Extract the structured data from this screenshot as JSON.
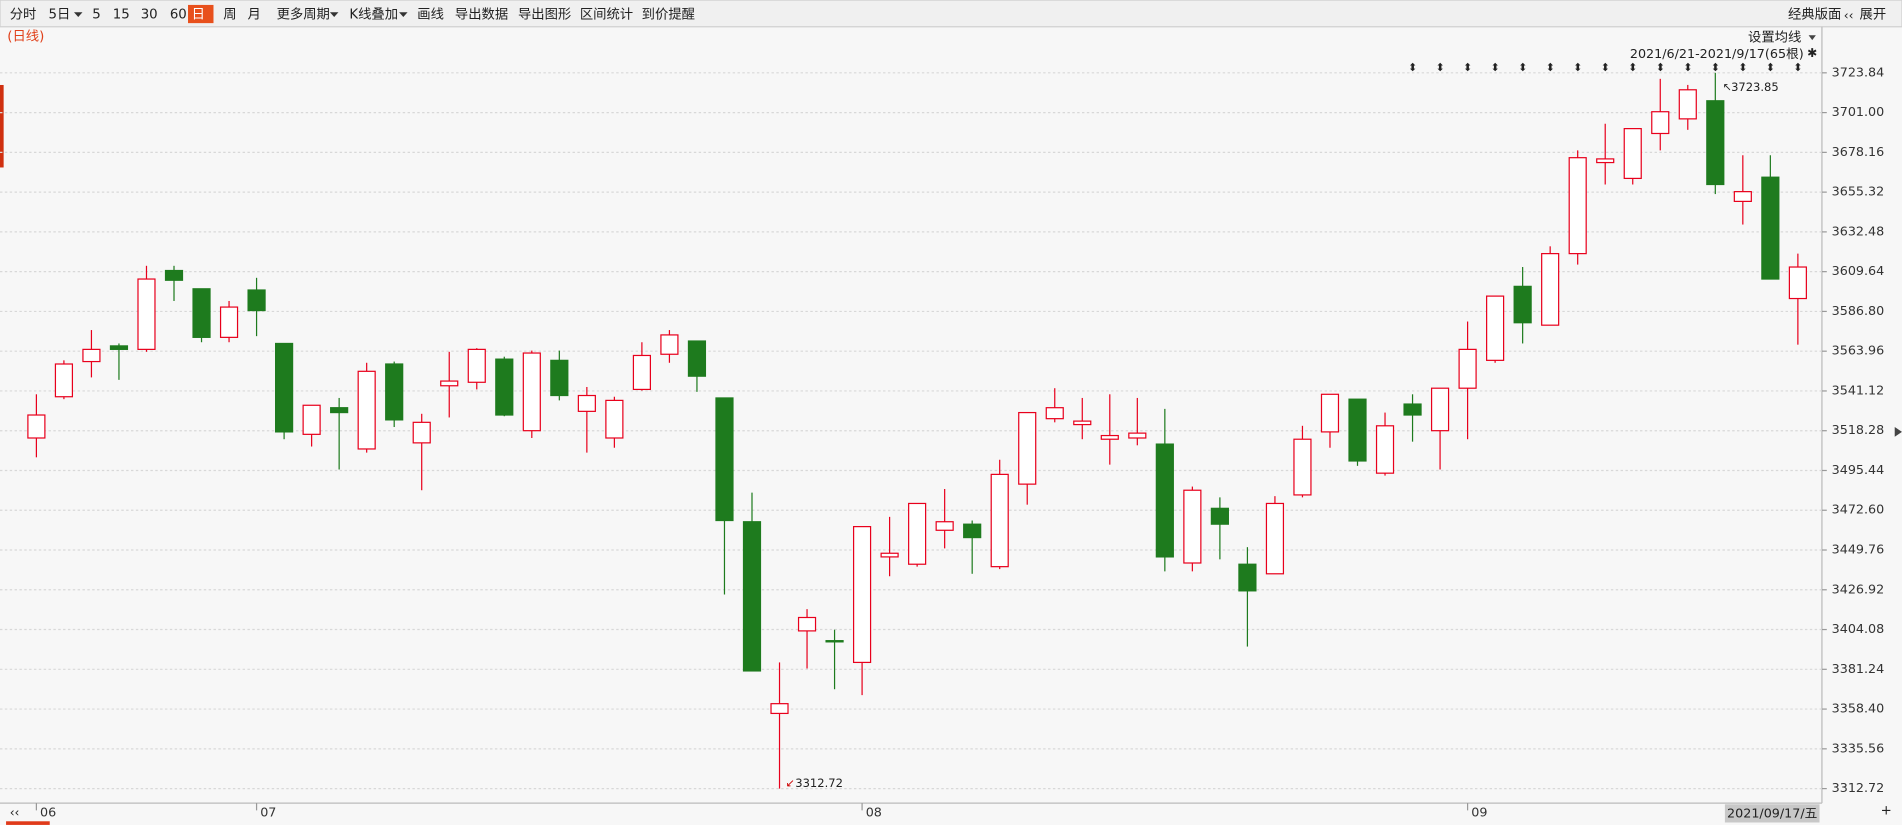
{
  "toolbar": {
    "items": [
      "分时",
      "5日",
      "5",
      "15",
      "30",
      "60",
      "日",
      "周",
      "月",
      "更多周期",
      "K线叠加",
      "画线",
      "导出数据",
      "导出图形",
      "区间统计",
      "到价提醒"
    ],
    "right_items": [
      "经典版面",
      "展开"
    ]
  },
  "chart_data": {
    "type": "candlestick",
    "title": "(日线)",
    "ma_button": "设置均线",
    "range_label": "2021/6/21-2021/9/17(65根)",
    "cursor_date": "2021/09/17/五",
    "high_marker": 3723.85,
    "low_marker": 3312.72,
    "up_color": "#e8001c",
    "down_color": "#1e7b1e",
    "grid": true,
    "categories": [
      "06",
      null,
      null,
      null,
      null,
      null,
      null,
      null,
      "07",
      null,
      null,
      null,
      null,
      null,
      null,
      null,
      null,
      null,
      null,
      null,
      null,
      null,
      null,
      null,
      null,
      null,
      null,
      null,
      null,
      null,
      "08",
      null,
      null,
      null,
      null,
      null,
      null,
      null,
      null,
      null,
      null,
      null,
      null,
      null,
      null,
      null,
      null,
      null,
      null,
      null,
      null,
      null,
      "09",
      null,
      null,
      null,
      null,
      null,
      null,
      null,
      null,
      null,
      null,
      null,
      null
    ],
    "series": {
      "open": [
        3514.1,
        3537.8,
        3558.0,
        3567.0,
        3565.0,
        3610.3,
        3599.8,
        3571.9,
        3599.1,
        3568.4,
        3516.2,
        3531.5,
        3507.8,
        3556.6,
        3511.3,
        3544.1,
        3546.1,
        3559.4,
        3518.3,
        3558.7,
        3529.4,
        3514.1,
        3542.0,
        3562.2,
        3569.8,
        3537.1,
        3466.0,
        3355.9,
        3403.3,
        3397.7,
        3385.2,
        3445.8,
        3441.6,
        3461.1,
        3464.6,
        3440.2,
        3487.6,
        3525.2,
        3521.8,
        3513.4,
        3514.1,
        3510.6,
        3442.3,
        3473.7,
        3441.6,
        3436.1,
        3481.4,
        3517.6,
        3536.4,
        3493.9,
        3533.6,
        3518.3,
        3542.7,
        3558.7,
        3601.2,
        3578.9,
        3620.0,
        3672.3,
        3663.2,
        3689.0,
        3697.4,
        3707.8,
        3650.0,
        3663.9,
        3594.2
      ],
      "high": [
        3539.2,
        3558.7,
        3576.1,
        3568.4,
        3613.0,
        3613.0,
        3599.8,
        3592.8,
        3606.1,
        3568.4,
        3532.9,
        3537.1,
        3557.3,
        3558.0,
        3528.0,
        3563.6,
        3565.7,
        3560.8,
        3564.3,
        3564.3,
        3543.4,
        3537.8,
        3569.1,
        3576.1,
        3569.8,
        3537.1,
        3482.7,
        3385.2,
        3415.8,
        3404.0,
        3463.2,
        3468.8,
        3476.5,
        3484.8,
        3466.7,
        3501.6,
        3528.7,
        3542.7,
        3537.1,
        3539.2,
        3537.1,
        3530.8,
        3486.2,
        3480.0,
        3451.4,
        3480.7,
        3521.1,
        3539.2,
        3536.4,
        3528.7,
        3539.2,
        3542.7,
        3581.0,
        3595.6,
        3612.3,
        3624.2,
        3679.3,
        3694.6,
        3691.8,
        3720.4,
        3716.9,
        3723.85,
        3676.5,
        3676.5,
        3620.0
      ],
      "low": [
        3503.0,
        3536.4,
        3548.9,
        3547.5,
        3563.6,
        3592.8,
        3569.1,
        3569.1,
        3572.6,
        3513.4,
        3509.2,
        3496.0,
        3505.7,
        3520.4,
        3484.1,
        3525.9,
        3542.0,
        3526.6,
        3514.1,
        3535.7,
        3505.7,
        3508.5,
        3541.3,
        3557.3,
        3540.6,
        3424.2,
        3380.3,
        3312.72,
        3381.7,
        3369.8,
        3366.4,
        3434.7,
        3440.2,
        3450.7,
        3436.1,
        3438.8,
        3475.8,
        3523.1,
        3513.4,
        3498.8,
        3509.9,
        3437.5,
        3437.5,
        3444.4,
        3394.3,
        3436.1,
        3480.0,
        3508.5,
        3498.1,
        3492.5,
        3512.0,
        3496.0,
        3513.4,
        3557.3,
        3568.4,
        3578.9,
        3613.7,
        3659.7,
        3659.7,
        3679.3,
        3691.1,
        3654.2,
        3636.7,
        3605.4,
        3567.7
      ],
      "close": [
        3527.3,
        3556.6,
        3565.0,
        3565.0,
        3605.4,
        3604.7,
        3571.9,
        3589.3,
        3587.3,
        3517.6,
        3532.9,
        3528.7,
        3552.4,
        3524.5,
        3523.1,
        3546.8,
        3565.0,
        3527.3,
        3562.9,
        3538.5,
        3538.5,
        3535.7,
        3561.5,
        3573.3,
        3549.6,
        3466.7,
        3380.3,
        3361.5,
        3411.0,
        3397.0,
        3463.2,
        3447.9,
        3476.5,
        3466.0,
        3456.9,
        3493.2,
        3528.7,
        3531.5,
        3523.8,
        3515.5,
        3516.9,
        3445.8,
        3484.1,
        3464.6,
        3426.3,
        3476.5,
        3513.4,
        3539.2,
        3500.9,
        3521.1,
        3527.3,
        3542.7,
        3565.0,
        3595.6,
        3580.3,
        3620.0,
        3675.1,
        3674.4,
        3691.8,
        3701.5,
        3714.1,
        3659.7,
        3655.6,
        3605.4,
        3612.3
      ]
    },
    "ylim": [
      3304.4,
      3750.3
    ],
    "yticks": [
      3312.72,
      3335.56,
      {
        "value": 3358.4,
        "label": "3358.40"
      },
      3381.24,
      3404.08,
      3426.92,
      3449.76,
      {
        "value": 3472.6,
        "label": "3472.60"
      },
      3495.44,
      3518.28,
      3541.12,
      3563.96,
      {
        "value": 3586.8,
        "label": "3586.80"
      },
      3609.64,
      3632.48,
      3655.32,
      3678.16,
      {
        "value": 3701,
        "label": "3701.00"
      },
      3723.84
    ]
  }
}
